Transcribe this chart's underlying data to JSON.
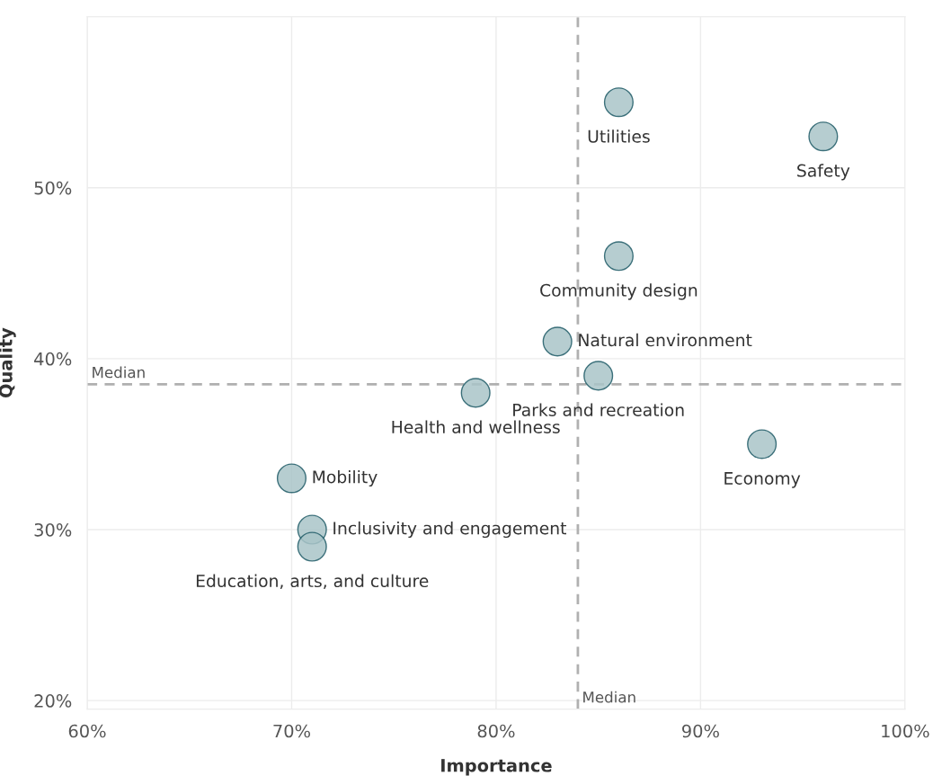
{
  "chart_data": {
    "type": "scatter",
    "xlabel": "Importance",
    "ylabel": "Quality",
    "x": [
      86,
      96,
      86,
      83,
      85,
      79,
      93,
      70,
      71,
      71
    ],
    "series": [
      {
        "color": "#a9c4c8",
        "values": [
          55,
          53,
          46,
          41,
          39,
          38,
          35,
          33,
          30,
          29
        ]
      }
    ],
    "marker": "circle",
    "grid": true,
    "xlim": [
      60,
      100
    ],
    "ylim": [
      19.5,
      60
    ],
    "xticks": [
      {
        "value": 60,
        "label": "60%"
      },
      {
        "value": 70,
        "label": "70%"
      },
      {
        "value": 80,
        "label": "80%"
      },
      {
        "value": 90,
        "label": "90%"
      },
      {
        "value": 100,
        "label": "100%"
      }
    ],
    "yticks": [
      {
        "value": 20,
        "label": "20%"
      },
      {
        "value": 30,
        "label": "30%"
      },
      {
        "value": 40,
        "label": "40%"
      },
      {
        "value": 50,
        "label": "50%"
      }
    ],
    "ref_lines": [
      {
        "axis": "x",
        "value": 84,
        "label": "Median",
        "color": "#b0b0b0",
        "line_style": "dashed"
      },
      {
        "axis": "y",
        "value": 38.5,
        "label": "Median",
        "color": "#b0b0b0",
        "line_style": "dashed"
      }
    ],
    "annotations": [
      {
        "text": "Utilities",
        "x": 86,
        "y": 55
      },
      {
        "text": "Safety",
        "x": 96,
        "y": 53
      },
      {
        "text": "Community design",
        "x": 86,
        "y": 46
      },
      {
        "text": "Natural environment",
        "x": 83,
        "y": 41
      },
      {
        "text": "Parks and recreation",
        "x": 85,
        "y": 39
      },
      {
        "text": "Health and wellness",
        "x": 79,
        "y": 38
      },
      {
        "text": "Economy",
        "x": 93,
        "y": 35
      },
      {
        "text": "Mobility",
        "x": 70,
        "y": 33
      },
      {
        "text": "Inclusivity and engagement",
        "x": 71,
        "y": 30
      },
      {
        "text": "Education, arts, and culture",
        "x": 71,
        "y": 29
      }
    ]
  }
}
